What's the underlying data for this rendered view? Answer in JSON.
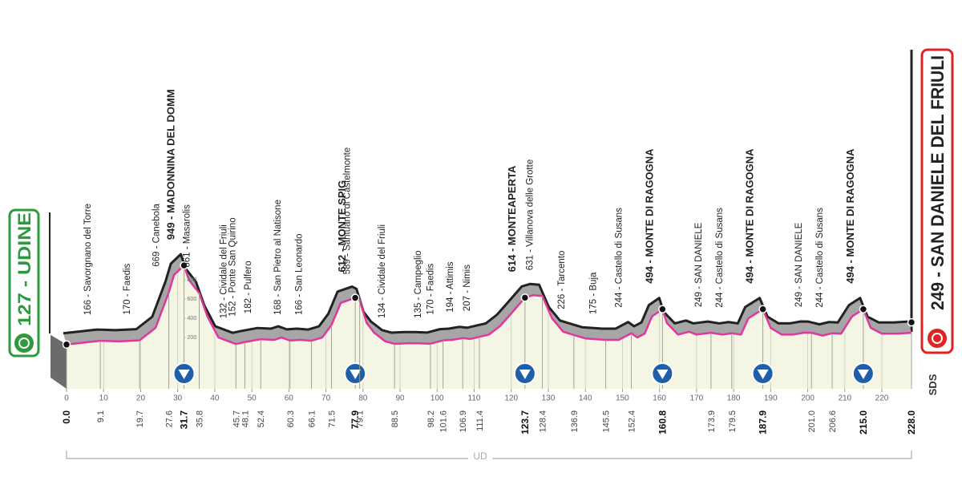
{
  "chart_data": {
    "type": "profile",
    "start": {
      "label": "127 - UDINE"
    },
    "finish": {
      "label": "249 - SAN DANIELE DEL FRIULI"
    },
    "province": "UD",
    "logo": "SDS",
    "x": [
      0,
      9.1,
      14,
      19.7,
      24,
      27.6,
      29,
      31.7,
      33,
      35.8,
      38,
      41,
      45.7,
      48.1,
      52.4,
      56,
      58,
      60.3,
      63,
      66.1,
      69,
      71.5,
      74,
      77.9,
      79.1,
      81,
      83,
      86,
      88.5,
      92,
      95,
      98.2,
      101.6,
      104,
      106.9,
      109,
      111.4,
      114,
      117,
      120,
      123.7,
      126,
      128.4,
      131,
      134,
      136.9,
      140,
      145.5,
      149,
      152.4,
      154,
      156,
      158,
      160.8,
      162,
      165,
      168,
      170,
      173.9,
      177,
      179.5,
      182,
      184,
      187.9,
      190,
      193,
      196,
      199,
      201,
      204,
      206.6,
      209,
      212,
      215,
      217,
      220,
      224,
      228
    ],
    "values": [
      127,
      166,
      160,
      170,
      300,
      669,
      850,
      949,
      800,
      661,
      420,
      200,
      132,
      152,
      182,
      175,
      200,
      168,
      175,
      166,
      200,
      330,
      560,
      612,
      589,
      350,
      250,
      160,
      134,
      140,
      140,
      135,
      170,
      175,
      194,
      185,
      207,
      230,
      320,
      450,
      614,
      640,
      631,
      400,
      260,
      226,
      190,
      175,
      175,
      244,
      200,
      240,
      420,
      494,
      350,
      230,
      260,
      230,
      249,
      230,
      244,
      230,
      400,
      494,
      300,
      230,
      230,
      250,
      249,
      220,
      244,
      240,
      420,
      494,
      300,
      240,
      240,
      249
    ],
    "xlim": [
      0,
      228
    ],
    "xticks": [
      0,
      10,
      20,
      30,
      40,
      50,
      60,
      70,
      80,
      90,
      100,
      110,
      120,
      130,
      140,
      150,
      160,
      170,
      180,
      190,
      200,
      210,
      220
    ],
    "ylim": [
      -333,
      1500
    ],
    "yticks": [
      200,
      400,
      600,
      800
    ],
    "line_color": "#e0379a",
    "top_color": "#222222",
    "band_color": "#a6a6a6",
    "ground_color": "#f5f5e4",
    "kom_color": "#1f5ea8",
    "waypoints": {
      "km": [
        {
          "value": 0,
          "label": "0.0"
        },
        9.1,
        19.7,
        27.6,
        31.7,
        35.8,
        45.7,
        48.1,
        52.4,
        60.3,
        66.1,
        71.5,
        77.9,
        79.1,
        88.5,
        98.2,
        101.6,
        106.9,
        111.4,
        123.7,
        128.4,
        136.9,
        145.5,
        152.4,
        160.8,
        173.9,
        179.5,
        187.9,
        {
          "value": 201,
          "label": "201.0"
        },
        206.6,
        {
          "value": 215,
          "label": "215.0"
        },
        {
          "value": 228,
          "label": "228.0"
        }
      ],
      "labels": [
        null,
        "166 - Savorgnano del Torre",
        "170 - Faedis",
        "669 - Canebola",
        "949 - MADONNINA DEL DOMM",
        "661 - Masarolis",
        "132 - Cividale del Friuli",
        "152 - Ponte San Quirino",
        "182 - Pulfero",
        "168 - San Pietro al Natisone",
        "166 - San Leonardo",
        null,
        "612 - MONTE SPIG",
        "589 - Santuario di Castelmonte",
        "134 - Cividale del Friuli",
        "135 - Campeglio",
        "170 - Faedis",
        "194 - Attimis",
        "207 - Nimis",
        "614 - MONTEAPERTA",
        "631 - Villanova delle Grotte",
        "226 - Tarcento",
        "175 - Buja",
        "244 - Castello di Susans",
        "494 - MONTE DI RAGOGNA",
        "249 - SAN DANIELE",
        "244 - Castello di Susans",
        "494 - MONTE DI RAGOGNA",
        "249 - SAN DANIELE",
        "244 - Castello di Susans",
        "494 - MONTE DI RAGOGNA",
        null
      ],
      "kom": [
        false,
        false,
        false,
        false,
        true,
        false,
        false,
        false,
        false,
        false,
        false,
        false,
        true,
        false,
        false,
        false,
        false,
        false,
        false,
        true,
        false,
        false,
        false,
        false,
        true,
        false,
        false,
        true,
        false,
        false,
        true,
        false
      ]
    }
  }
}
